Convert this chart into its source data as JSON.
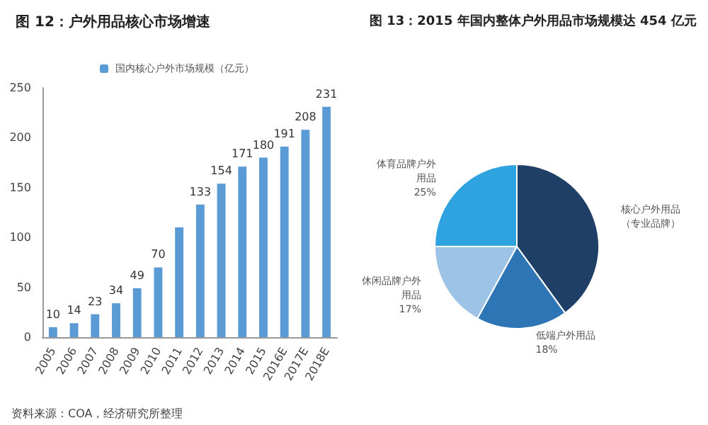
{
  "chart_data": [
    {
      "type": "bar",
      "title": "图 12：户外用品核心市场增速",
      "categories": [
        "2005",
        "2006",
        "2007",
        "2008",
        "2009",
        "2010",
        "2011",
        "2012",
        "2013",
        "2014",
        "2015",
        "2016E",
        "2017E",
        "2018E"
      ],
      "series": [
        {
          "name": "国内核心户外市场规模（亿元）",
          "color": "#5b9bd5",
          "values": [
            10,
            14,
            23,
            34,
            49,
            70,
            110,
            133,
            154,
            171,
            180,
            191,
            208,
            231
          ],
          "value_labels": [
            "10",
            "14",
            "23",
            "34",
            "49",
            "70",
            null,
            "133",
            "154",
            "171",
            "180",
            "191",
            "208",
            "231"
          ]
        }
      ],
      "ylim": [
        0,
        250
      ],
      "yticks": [
        0,
        50,
        100,
        150,
        200,
        250
      ],
      "grid": false,
      "legend": "top",
      "annotations": [
        "资料来源：COA，经济研究所整理"
      ]
    },
    {
      "type": "pie",
      "title": "图 13：2015 年国内整体户外用品市场规模达 454 亿元",
      "categories": [
        "核心户外用品（专业品牌）",
        "低端户外用品",
        "休闲品牌户外用品",
        "体育品牌户外用品"
      ],
      "values": [
        40,
        18,
        17,
        25
      ],
      "colors": [
        "#1f3f66",
        "#2e75b6",
        "#9dc3e6",
        "#2ea3e0"
      ],
      "value_labels": [
        null,
        "18%",
        "17%",
        "25%"
      ]
    }
  ]
}
